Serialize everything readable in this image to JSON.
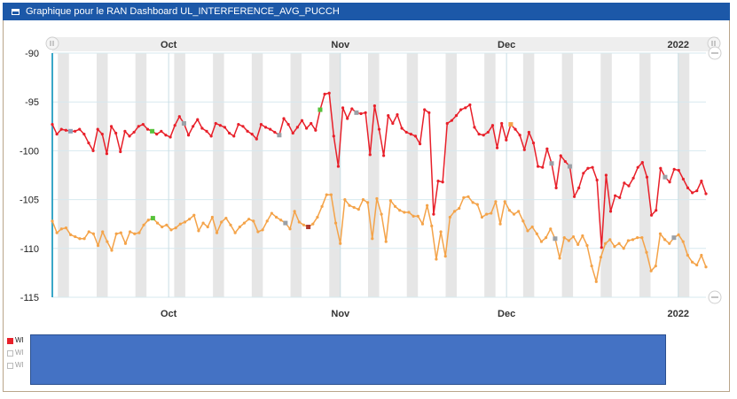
{
  "window": {
    "title": "Graphique pour le RAN Dashboard UL_INTERFERENCE_AVG_PUCCH"
  },
  "colors": {
    "titlebar": "#1c58a8",
    "series_red": "#e8202a",
    "series_orange": "#f4a349",
    "weekend_band": "#e6e6e6",
    "redaction": "#4472c4",
    "grey_marker": "#9aa0a6"
  },
  "legend": {
    "items": [
      {
        "label": "WI",
        "color": "#e8202a"
      },
      {
        "label": "WI",
        "color": "#bdbdbd"
      },
      {
        "label": "WI",
        "color": "#bdbdbd"
      }
    ]
  },
  "chart_data": {
    "type": "line",
    "title": "",
    "xlabel": "",
    "ylabel": "",
    "ylim": [
      -115,
      -90
    ],
    "y_ticks": [
      -90,
      -95,
      -100,
      -105,
      -110,
      -115
    ],
    "x_month_labels": [
      "Oct",
      "Nov",
      "Dec",
      "2022"
    ],
    "x_start": "2021-09-10",
    "x_end": "2022-01-06",
    "grid": true,
    "series": [
      {
        "name": "",
        "color": "#e8202a",
        "values": [
          -97.3,
          -98.3,
          -97.8,
          -97.9,
          -98,
          -98,
          -97.8,
          -98.3,
          -99.2,
          -100,
          -97.8,
          -98.3,
          -100.3,
          -97.5,
          -98.2,
          -100.1,
          -98,
          -98.5,
          -98.1,
          -97.5,
          -97.3,
          -97.8,
          -98,
          -98.3,
          -98,
          -98.4,
          -98.6,
          -97.4,
          -96.5,
          -97.2,
          -98.4,
          -97.5,
          -96.8,
          -97.7,
          -98,
          -98.5,
          -97.2,
          -97.4,
          -97.6,
          -98.2,
          -98.5,
          -97.3,
          -97.5,
          -98,
          -98.3,
          -98.8,
          -97.3,
          -97.6,
          -97.8,
          -98.1,
          -98.4,
          -96.7,
          -97.3,
          -98.2,
          -97.6,
          -96.9,
          -97.7,
          -97.2,
          -97.9,
          -95.8,
          -94.2,
          -94.1,
          -98.5,
          -101.6,
          -95.6,
          -96.7,
          -95.7,
          -96.1,
          -96.2,
          -96.1,
          -100.4,
          -95.4,
          -97.8,
          -100.5,
          -96.4,
          -97.2,
          -96.3,
          -97.7,
          -98.1,
          -98.3,
          -98.5,
          -99.3,
          -95.8,
          -96.1,
          -106.5,
          -103.1,
          -103.2,
          -97.2,
          -96.9,
          -96.4,
          -95.8,
          -95.6,
          -95.3,
          -97.6,
          -98.3,
          -98.4,
          -98.1,
          -97.4,
          -99.7,
          -97.2,
          -98.9,
          -97.3,
          -97.8,
          -98.4,
          -99.9,
          -98.1,
          -99.2,
          -101.6,
          -101.7,
          -99.8,
          -101.3,
          -103.8,
          -100.5,
          -101.1,
          -101.6,
          -104.7,
          -103.8,
          -102.3,
          -101.8,
          -101.7,
          -103,
          -109.9,
          -102.5,
          -106.2,
          -104.6,
          -104.8,
          -103.3,
          -103.6,
          -102.8,
          -101.7,
          -101.2,
          -102.7,
          -106.6,
          -106.1,
          -101.8,
          -102.7,
          -103.2,
          -101.9,
          -102,
          -102.9,
          -103.8,
          -104.3,
          -104.1,
          -103.1,
          -104.4
        ]
      },
      {
        "name": "",
        "color": "#f4a349",
        "values": [
          -107.2,
          -108.4,
          -108,
          -107.9,
          -108.6,
          -108.8,
          -109,
          -109,
          -108.3,
          -108.5,
          -109.7,
          -108.3,
          -109.3,
          -110.2,
          -108.5,
          -108.4,
          -109.5,
          -108.3,
          -108.5,
          -108.4,
          -107.6,
          -107.1,
          -106.9,
          -107.4,
          -107.8,
          -107.6,
          -108.1,
          -107.9,
          -107.5,
          -107.3,
          -107,
          -106.6,
          -108.2,
          -107.4,
          -107.8,
          -106.8,
          -108.4,
          -107.3,
          -106.9,
          -107.6,
          -108.4,
          -107.8,
          -107.4,
          -107,
          -107.2,
          -108.3,
          -108.1,
          -107.2,
          -106.4,
          -106.8,
          -107.1,
          -107.4,
          -108,
          -106.2,
          -107.3,
          -107.6,
          -107.8,
          -107.5,
          -106.8,
          -105.7,
          -104.5,
          -104.5,
          -107.4,
          -109.5,
          -105,
          -105.6,
          -105.8,
          -106,
          -105,
          -105.3,
          -109,
          -104.9,
          -106.5,
          -109.3,
          -105.1,
          -105.7,
          -106.1,
          -106.3,
          -106.3,
          -106.7,
          -106.7,
          -107.5,
          -105.6,
          -107.7,
          -111.1,
          -108.3,
          -110.8,
          -106.8,
          -106.2,
          -105.9,
          -104.8,
          -104.7,
          -105.3,
          -105.5,
          -106.8,
          -106.5,
          -106.4,
          -105.2,
          -107.5,
          -105.2,
          -106.1,
          -106.5,
          -106.2,
          -107.2,
          -108.2,
          -107.8,
          -108.5,
          -109.3,
          -108.9,
          -108,
          -109,
          -111,
          -108.9,
          -109.2,
          -108.8,
          -109.6,
          -108.7,
          -109.7,
          -111.8,
          -113.4,
          -110.9,
          -109.5,
          -109.1,
          -109.8,
          -109.5,
          -110,
          -109.2,
          -109.1,
          -108.9,
          -108.9,
          -110.4,
          -112.3,
          -111.8,
          -108.5,
          -109.1,
          -109.5,
          -108.9,
          -108.6,
          -109.3,
          -110.7,
          -111.4,
          -111.7,
          -110.7,
          -111.9
        ]
      }
    ]
  }
}
